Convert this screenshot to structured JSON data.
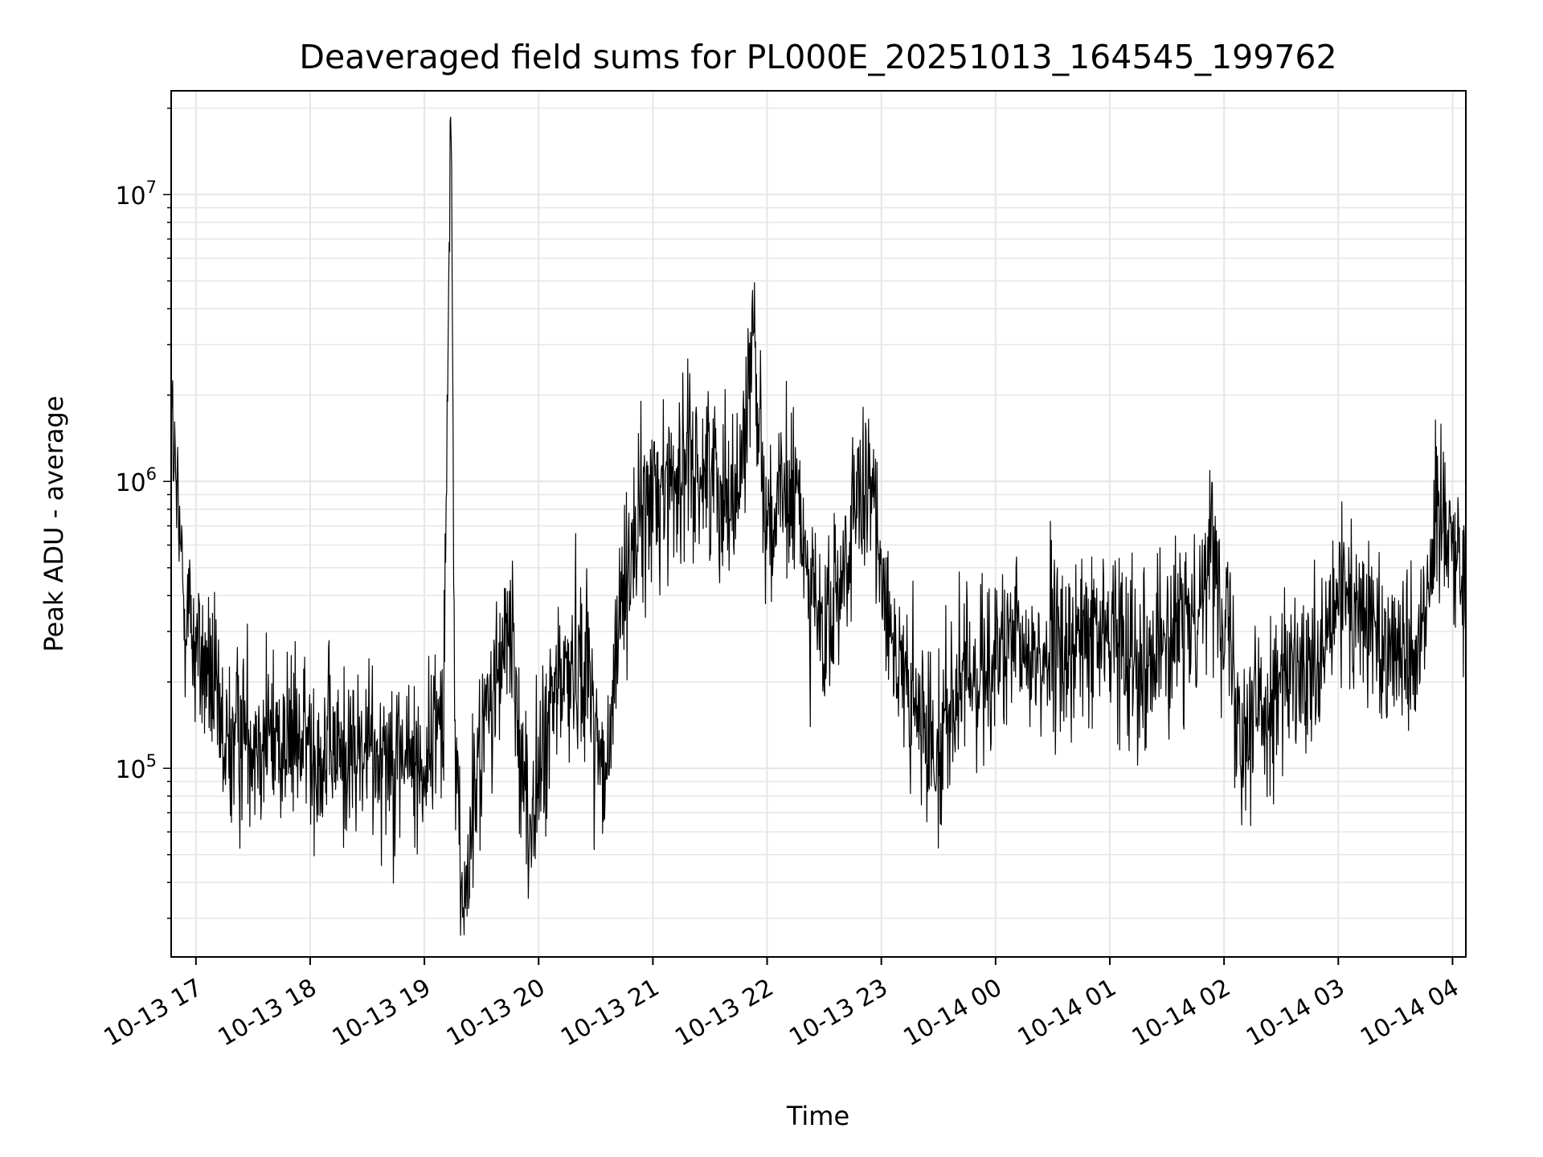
{
  "chart_data": {
    "type": "line",
    "title": "Deaveraged field sums for PL000E_20251013_164545_199762",
    "xlabel": "Time",
    "ylabel": "Peak ADU - average",
    "yscale": "log",
    "ylim": [
      22000,
      23000000
    ],
    "xlim": [
      "2025-10-13 16:47",
      "2025-10-14 04:07"
    ],
    "grid": true,
    "line_color": "#000000",
    "grid_color": "#e6e6e6",
    "x_ticks": [
      "10-13 17",
      "10-13 18",
      "10-13 19",
      "10-13 20",
      "10-13 21",
      "10-13 22",
      "10-13 23",
      "10-14 00",
      "10-14 01",
      "10-14 02",
      "10-14 03",
      "10-14 04"
    ],
    "y_ticks": [
      {
        "value": 100000,
        "base": "10",
        "exp": "5"
      },
      {
        "value": 1000000,
        "base": "10",
        "exp": "6"
      },
      {
        "value": 10000000,
        "base": "10",
        "exp": "7"
      }
    ],
    "series": [
      {
        "points": [
          [
            "2025-10-13 16:47",
            1700000
          ],
          [
            "2025-10-13 16:50",
            800000
          ],
          [
            "2025-10-13 16:53",
            450000
          ],
          [
            "2025-10-13 17:00",
            260000
          ],
          [
            "2025-10-13 17:08",
            200000
          ],
          [
            "2025-10-13 17:15",
            110000
          ],
          [
            "2025-10-13 17:25",
            140000
          ],
          [
            "2025-10-13 17:40",
            130000
          ],
          [
            "2025-10-13 18:00",
            120000
          ],
          [
            "2025-10-13 18:20",
            110000
          ],
          [
            "2025-10-13 18:40",
            120000
          ],
          [
            "2025-10-13 19:00",
            100000
          ],
          [
            "2025-10-13 19:10",
            180000
          ],
          [
            "2025-10-13 19:14",
            17000000
          ],
          [
            "2025-10-13 19:16",
            150000
          ],
          [
            "2025-10-13 19:20",
            30000
          ],
          [
            "2025-10-13 19:30",
            130000
          ],
          [
            "2025-10-13 19:45",
            300000
          ],
          [
            "2025-10-13 19:55",
            60000
          ],
          [
            "2025-10-13 20:10",
            200000
          ],
          [
            "2025-10-13 20:25",
            250000
          ],
          [
            "2025-10-13 20:35",
            80000
          ],
          [
            "2025-10-13 20:45",
            500000
          ],
          [
            "2025-10-13 21:00",
            900000
          ],
          [
            "2025-10-13 21:15",
            1100000
          ],
          [
            "2025-10-13 21:30",
            1100000
          ],
          [
            "2025-10-13 21:45",
            900000
          ],
          [
            "2025-10-13 21:53",
            3400000
          ],
          [
            "2025-10-13 22:00",
            700000
          ],
          [
            "2025-10-13 22:15",
            900000
          ],
          [
            "2025-10-13 22:30",
            250000
          ],
          [
            "2025-10-13 22:45",
            700000
          ],
          [
            "2025-10-13 22:55",
            900000
          ],
          [
            "2025-10-13 23:10",
            200000
          ],
          [
            "2025-10-13 23:25",
            120000
          ],
          [
            "2025-10-13 23:45",
            200000
          ],
          [
            "2025-10-14 00:00",
            250000
          ],
          [
            "2025-10-14 00:30",
            250000
          ],
          [
            "2025-10-14 01:00",
            300000
          ],
          [
            "2025-10-14 01:20",
            250000
          ],
          [
            "2025-10-14 01:40",
            300000
          ],
          [
            "2025-10-14 01:55",
            600000
          ],
          [
            "2025-10-14 02:10",
            140000
          ],
          [
            "2025-10-14 02:30",
            200000
          ],
          [
            "2025-10-14 02:50",
            200000
          ],
          [
            "2025-10-14 03:00",
            400000
          ],
          [
            "2025-10-14 03:20",
            300000
          ],
          [
            "2025-10-14 03:40",
            250000
          ],
          [
            "2025-10-14 03:55",
            900000
          ],
          [
            "2025-10-14 04:07",
            400000
          ]
        ]
      }
    ]
  }
}
